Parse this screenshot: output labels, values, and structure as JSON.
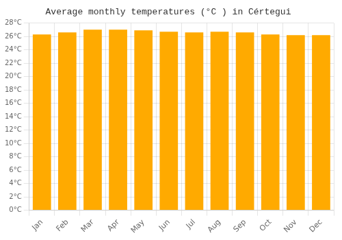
{
  "chart_data": {
    "type": "bar",
    "title": "Average monthly temperatures (°C ) in Cértegui",
    "categories": [
      "Jan",
      "Feb",
      "Mar",
      "Apr",
      "May",
      "Jun",
      "Jul",
      "Aug",
      "Sep",
      "Oct",
      "Nov",
      "Dec"
    ],
    "values": [
      26.3,
      26.6,
      27.0,
      27.0,
      26.9,
      26.7,
      26.6,
      26.7,
      26.6,
      26.3,
      26.2,
      26.2
    ],
    "color": "#FFAA00",
    "ylim": [
      0,
      28
    ],
    "yticks": [
      {
        "value": 0,
        "label": "0°C"
      },
      {
        "value": 2,
        "label": "2°C"
      },
      {
        "value": 4,
        "label": "4°C"
      },
      {
        "value": 6,
        "label": "6°C"
      },
      {
        "value": 8,
        "label": "8°C"
      },
      {
        "value": 10,
        "label": "10°C"
      },
      {
        "value": 12,
        "label": "12°C"
      },
      {
        "value": 14,
        "label": "14°C"
      },
      {
        "value": 16,
        "label": "16°C"
      },
      {
        "value": 18,
        "label": "18°C"
      },
      {
        "value": 20,
        "label": "20°C"
      },
      {
        "value": 22,
        "label": "22°C"
      },
      {
        "value": 24,
        "label": "24°C"
      },
      {
        "value": 26,
        "label": "26°C"
      },
      {
        "value": 28,
        "label": "28°C"
      }
    ],
    "grid": true
  }
}
